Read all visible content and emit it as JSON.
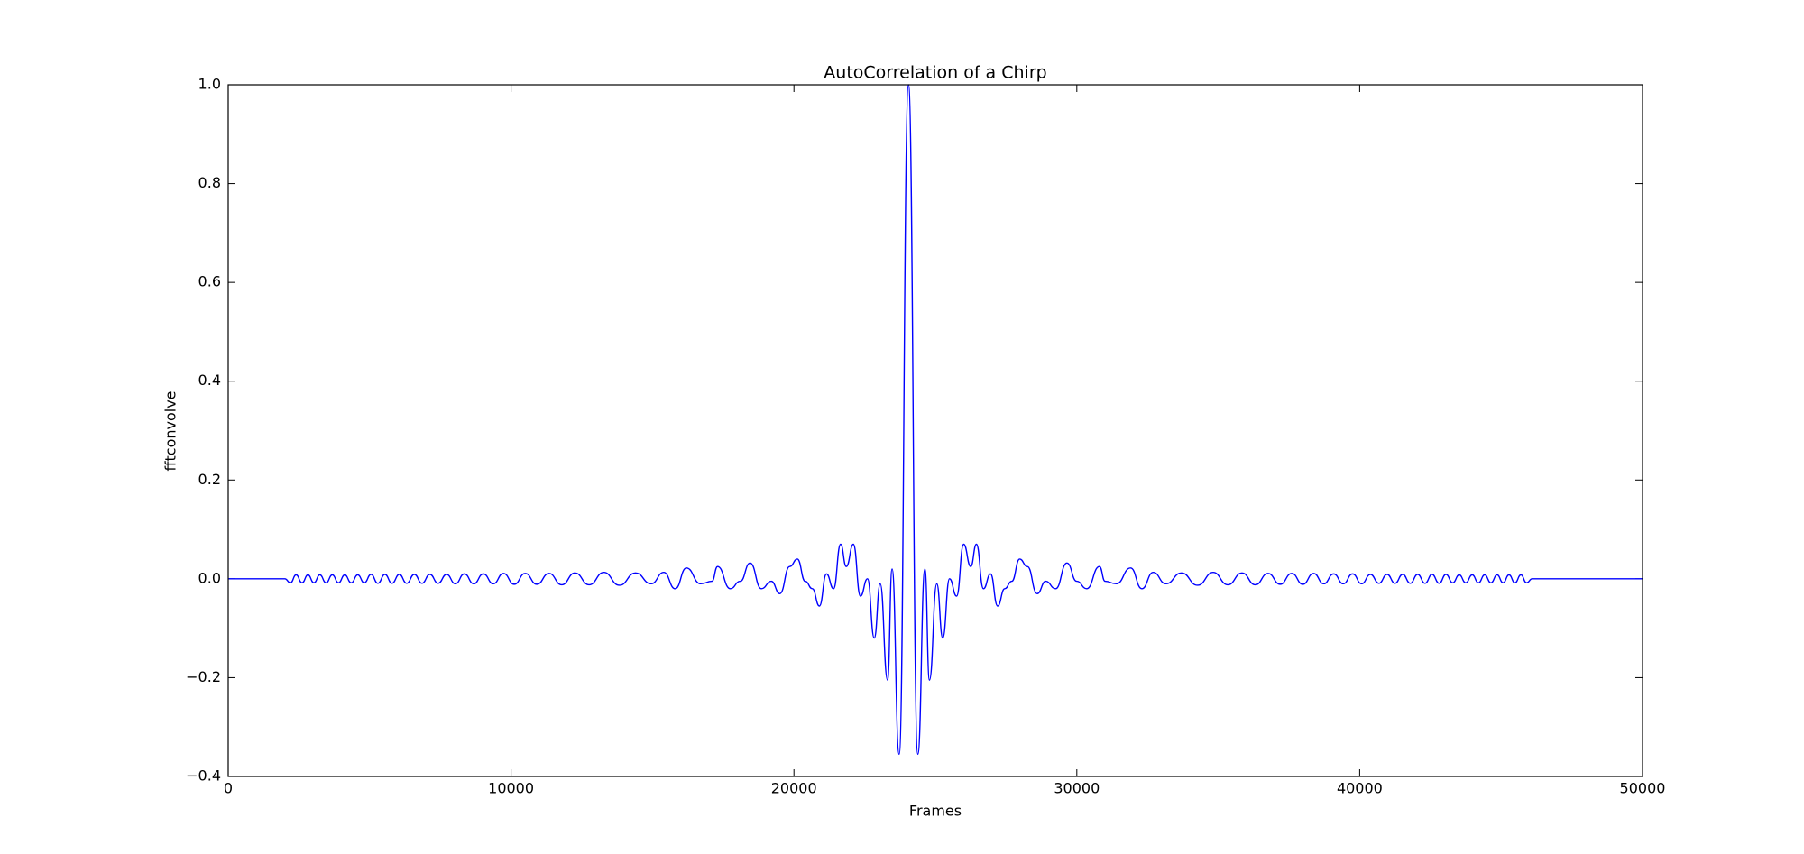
{
  "chart_data": {
    "type": "line",
    "title": "AutoCorrelation of a Chirp",
    "x_label": "Frames",
    "y_label": "fftconvolve",
    "x": [
      0,
      2000,
      2200,
      2400,
      2610,
      2820,
      3030,
      3240,
      3460,
      3680,
      3900,
      4120,
      4350,
      4580,
      4810,
      5050,
      5290,
      5540,
      5790,
      6050,
      6310,
      6580,
      6850,
      7130,
      7420,
      7720,
      8030,
      8350,
      8680,
      9020,
      9370,
      9730,
      10110,
      10500,
      10910,
      11340,
      11790,
      12260,
      12760,
      13280,
      13830,
      14400,
      14950,
      15400,
      15800,
      16200,
      16700,
      17100,
      17300,
      17750,
      18100,
      18450,
      18850,
      19200,
      19500,
      19850,
      20120,
      20400,
      20650,
      20900,
      21150,
      21400,
      21650,
      21850,
      22100,
      22350,
      22600,
      22840,
      23050,
      23310,
      23470,
      23720,
      24050,
      24380,
      24630,
      24790,
      25050,
      25260,
      25500,
      25750,
      26000,
      26250,
      26450,
      26700,
      26950,
      27200,
      27450,
      27700,
      27980,
      28250,
      28600,
      28900,
      29250,
      29650,
      30000,
      30350,
      30800,
      31000,
      31400,
      31900,
      32300,
      32700,
      33150,
      33700,
      34270,
      34820,
      35340,
      35840,
      36310,
      36760,
      37190,
      37600,
      37990,
      38370,
      38730,
      39080,
      39420,
      39750,
      40070,
      40380,
      40680,
      40970,
      41250,
      41520,
      41790,
      42050,
      42310,
      42560,
      42810,
      43050,
      43290,
      43520,
      43750,
      43980,
      44200,
      44420,
      44640,
      44860,
      45070,
      45280,
      45490,
      45700,
      45900,
      46100,
      50000
    ],
    "series": [
      {
        "color": "#0000ff",
        "values": [
          0,
          0,
          -0.008,
          0.008,
          -0.008,
          0.008,
          -0.008,
          0.008,
          -0.008,
          0.008,
          -0.008,
          0.008,
          -0.008,
          0.008,
          -0.008,
          0.009,
          -0.009,
          0.009,
          -0.009,
          0.009,
          -0.009,
          0.009,
          -0.009,
          0.009,
          -0.009,
          0.009,
          -0.01,
          0.01,
          -0.01,
          0.01,
          -0.01,
          0.011,
          -0.011,
          0.011,
          -0.011,
          0.011,
          -0.012,
          0.012,
          -0.012,
          0.013,
          -0.013,
          0.012,
          -0.01,
          0.013,
          -0.02,
          0.022,
          -0.01,
          -0.005,
          0.025,
          -0.02,
          -0.005,
          0.032,
          -0.02,
          -0.005,
          -0.03,
          0.025,
          0.04,
          -0.005,
          -0.02,
          -0.055,
          0.01,
          -0.02,
          0.07,
          0.025,
          0.07,
          -0.035,
          0.0,
          -0.12,
          -0.01,
          -0.205,
          0.02,
          -0.355,
          1.0,
          -0.355,
          0.02,
          -0.205,
          -0.01,
          -0.12,
          0.0,
          -0.035,
          0.07,
          0.025,
          0.07,
          -0.02,
          0.01,
          -0.055,
          -0.02,
          -0.005,
          0.04,
          0.025,
          -0.03,
          -0.005,
          -0.02,
          0.032,
          -0.005,
          -0.02,
          0.025,
          -0.005,
          -0.01,
          0.022,
          -0.02,
          0.013,
          -0.01,
          0.012,
          -0.013,
          0.013,
          -0.012,
          0.012,
          -0.012,
          0.011,
          -0.011,
          0.011,
          -0.011,
          0.011,
          -0.01,
          0.01,
          -0.01,
          0.01,
          -0.01,
          0.009,
          -0.009,
          0.009,
          -0.009,
          0.009,
          -0.009,
          0.009,
          -0.009,
          0.009,
          -0.009,
          0.009,
          -0.008,
          0.008,
          -0.008,
          0.008,
          -0.008,
          0.008,
          -0.008,
          0.008,
          -0.008,
          0.008,
          -0.008,
          0.008,
          -0.008,
          0,
          0
        ]
      }
    ],
    "xlim": [
      0,
      50000
    ],
    "xticks": [
      0,
      10000,
      20000,
      30000,
      40000,
      50000
    ],
    "ylim": [
      -0.4,
      1.0
    ],
    "yticks": [
      {
        "value": -0.4,
        "label": "−0.4"
      },
      {
        "value": -0.2,
        "label": "−0.2"
      },
      {
        "value": 0.0,
        "label": "0.0"
      },
      {
        "value": 0.2,
        "label": "0.2"
      },
      {
        "value": 0.4,
        "label": "0.4"
      },
      {
        "value": 0.6,
        "label": "0.6"
      },
      {
        "value": 0.8,
        "label": "0.8"
      },
      {
        "value": 1.0,
        "label": "1.0"
      }
    ]
  }
}
